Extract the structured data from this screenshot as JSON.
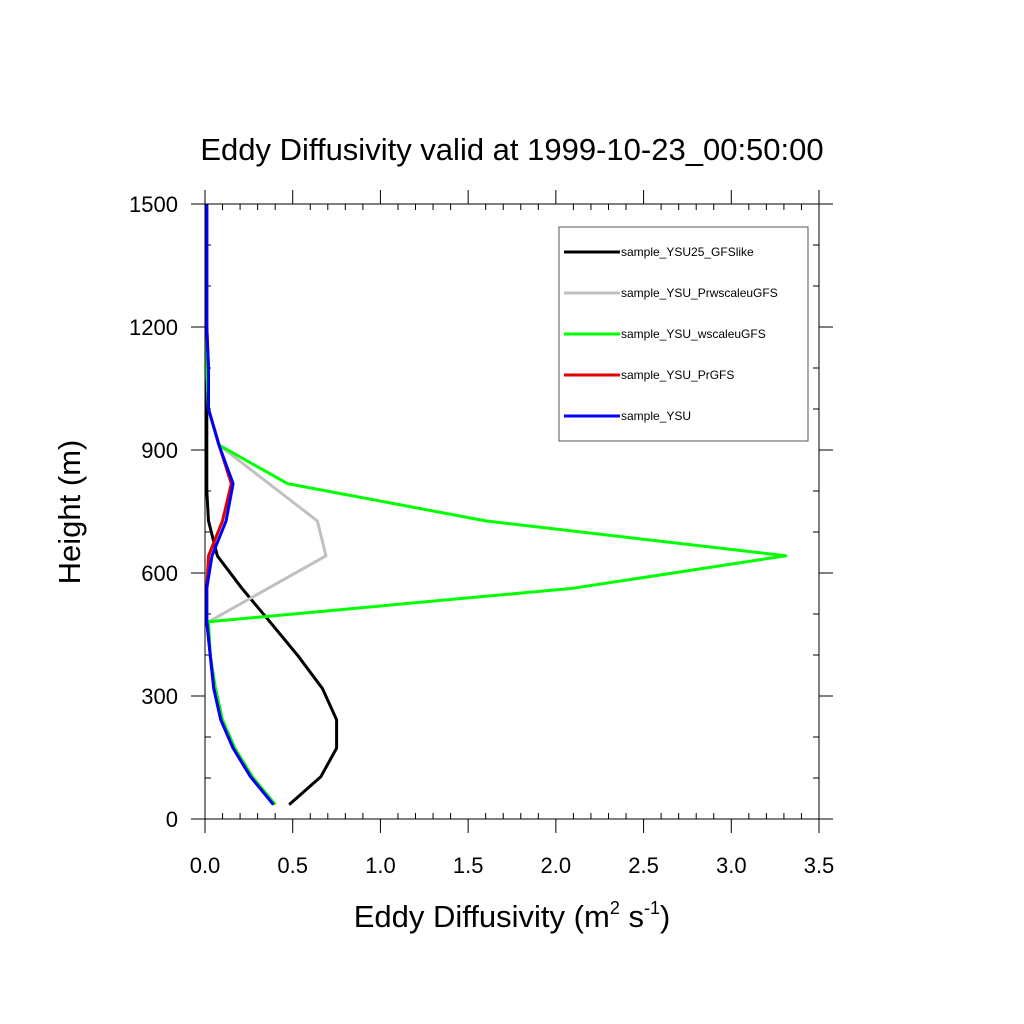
{
  "chart_data": {
    "type": "line",
    "title": "Eddy Diffusivity valid at 1999-10-23_00:50:00",
    "xlabel": {
      "base": "Eddy Diffusivity (m",
      "sup1": "2",
      "mid": " s",
      "sup2": "-1",
      "end": ")"
    },
    "ylabel": "Height (m)",
    "xlim": [
      0,
      3.5
    ],
    "ylim": [
      0,
      1500
    ],
    "xticks": [
      "0.0",
      "0.5",
      "1.0",
      "1.5",
      "2.0",
      "2.5",
      "3.0",
      "3.5"
    ],
    "yticks": [
      "0",
      "300",
      "600",
      "900",
      "1200",
      "1500"
    ],
    "grid": false,
    "legend_position": "top-right",
    "series": [
      {
        "name": "sample_YSU25_GFSlike",
        "color": "#000000",
        "points": [
          [
            0.48,
            35
          ],
          [
            0.66,
            103
          ],
          [
            0.75,
            173
          ],
          [
            0.75,
            242
          ],
          [
            0.67,
            318
          ],
          [
            0.53,
            398
          ],
          [
            0.37,
            481
          ],
          [
            0.21,
            563
          ],
          [
            0.07,
            642
          ],
          [
            0.02,
            727
          ],
          [
            0.01,
            800
          ],
          [
            0.01,
            900
          ],
          [
            0.01,
            1000
          ],
          [
            0.01,
            1100
          ],
          [
            0.01,
            1200
          ],
          [
            0.01,
            1300
          ],
          [
            0.01,
            1400
          ],
          [
            0.01,
            1500
          ]
        ]
      },
      {
        "name": "sample_YSU_PrwscaleuGFS",
        "color": "#c0c0c0",
        "points": [
          [
            0.4,
            35
          ],
          [
            0.27,
            103
          ],
          [
            0.17,
            173
          ],
          [
            0.1,
            242
          ],
          [
            0.06,
            318
          ],
          [
            0.03,
            398
          ],
          [
            0.02,
            481
          ],
          [
            0.69,
            642
          ],
          [
            0.64,
            727
          ],
          [
            0.08,
            912
          ],
          [
            0.02,
            1000
          ],
          [
            0.01,
            1100
          ],
          [
            0.01,
            1200
          ],
          [
            0.01,
            1300
          ],
          [
            0.01,
            1400
          ],
          [
            0.01,
            1500
          ]
        ]
      },
      {
        "name": "sample_YSU_wscaleuGFS",
        "color": "#00ff00",
        "points": [
          [
            0.4,
            35
          ],
          [
            0.27,
            103
          ],
          [
            0.17,
            173
          ],
          [
            0.1,
            242
          ],
          [
            0.06,
            318
          ],
          [
            0.03,
            398
          ],
          [
            0.02,
            481
          ],
          [
            2.1,
            563
          ],
          [
            3.31,
            642
          ],
          [
            1.6,
            727
          ],
          [
            0.47,
            818
          ],
          [
            0.08,
            912
          ],
          [
            0.02,
            1000
          ],
          [
            0.01,
            1100
          ],
          [
            0.01,
            1200
          ],
          [
            0.01,
            1300
          ],
          [
            0.01,
            1400
          ],
          [
            0.01,
            1500
          ]
        ]
      },
      {
        "name": "sample_YSU_PrGFS",
        "color": "#e00000",
        "points": [
          [
            0.39,
            35
          ],
          [
            0.26,
            103
          ],
          [
            0.16,
            173
          ],
          [
            0.09,
            242
          ],
          [
            0.05,
            318
          ],
          [
            0.03,
            398
          ],
          [
            0.01,
            481
          ],
          [
            0.01,
            563
          ],
          [
            0.02,
            642
          ],
          [
            0.1,
            727
          ],
          [
            0.15,
            818
          ],
          [
            0.08,
            912
          ],
          [
            0.02,
            1000
          ],
          [
            0.02,
            1100
          ],
          [
            0.01,
            1200
          ],
          [
            0.01,
            1300
          ],
          [
            0.01,
            1400
          ],
          [
            0.01,
            1500
          ]
        ]
      },
      {
        "name": "sample_YSU",
        "color": "#0000ff",
        "points": [
          [
            0.39,
            35
          ],
          [
            0.26,
            103
          ],
          [
            0.16,
            173
          ],
          [
            0.09,
            242
          ],
          [
            0.05,
            318
          ],
          [
            0.03,
            398
          ],
          [
            0.01,
            481
          ],
          [
            0.01,
            563
          ],
          [
            0.04,
            642
          ],
          [
            0.12,
            727
          ],
          [
            0.16,
            818
          ],
          [
            0.08,
            912
          ],
          [
            0.02,
            1000
          ],
          [
            0.02,
            1100
          ],
          [
            0.01,
            1200
          ],
          [
            0.01,
            1300
          ],
          [
            0.01,
            1400
          ],
          [
            0.01,
            1500
          ]
        ]
      }
    ]
  }
}
